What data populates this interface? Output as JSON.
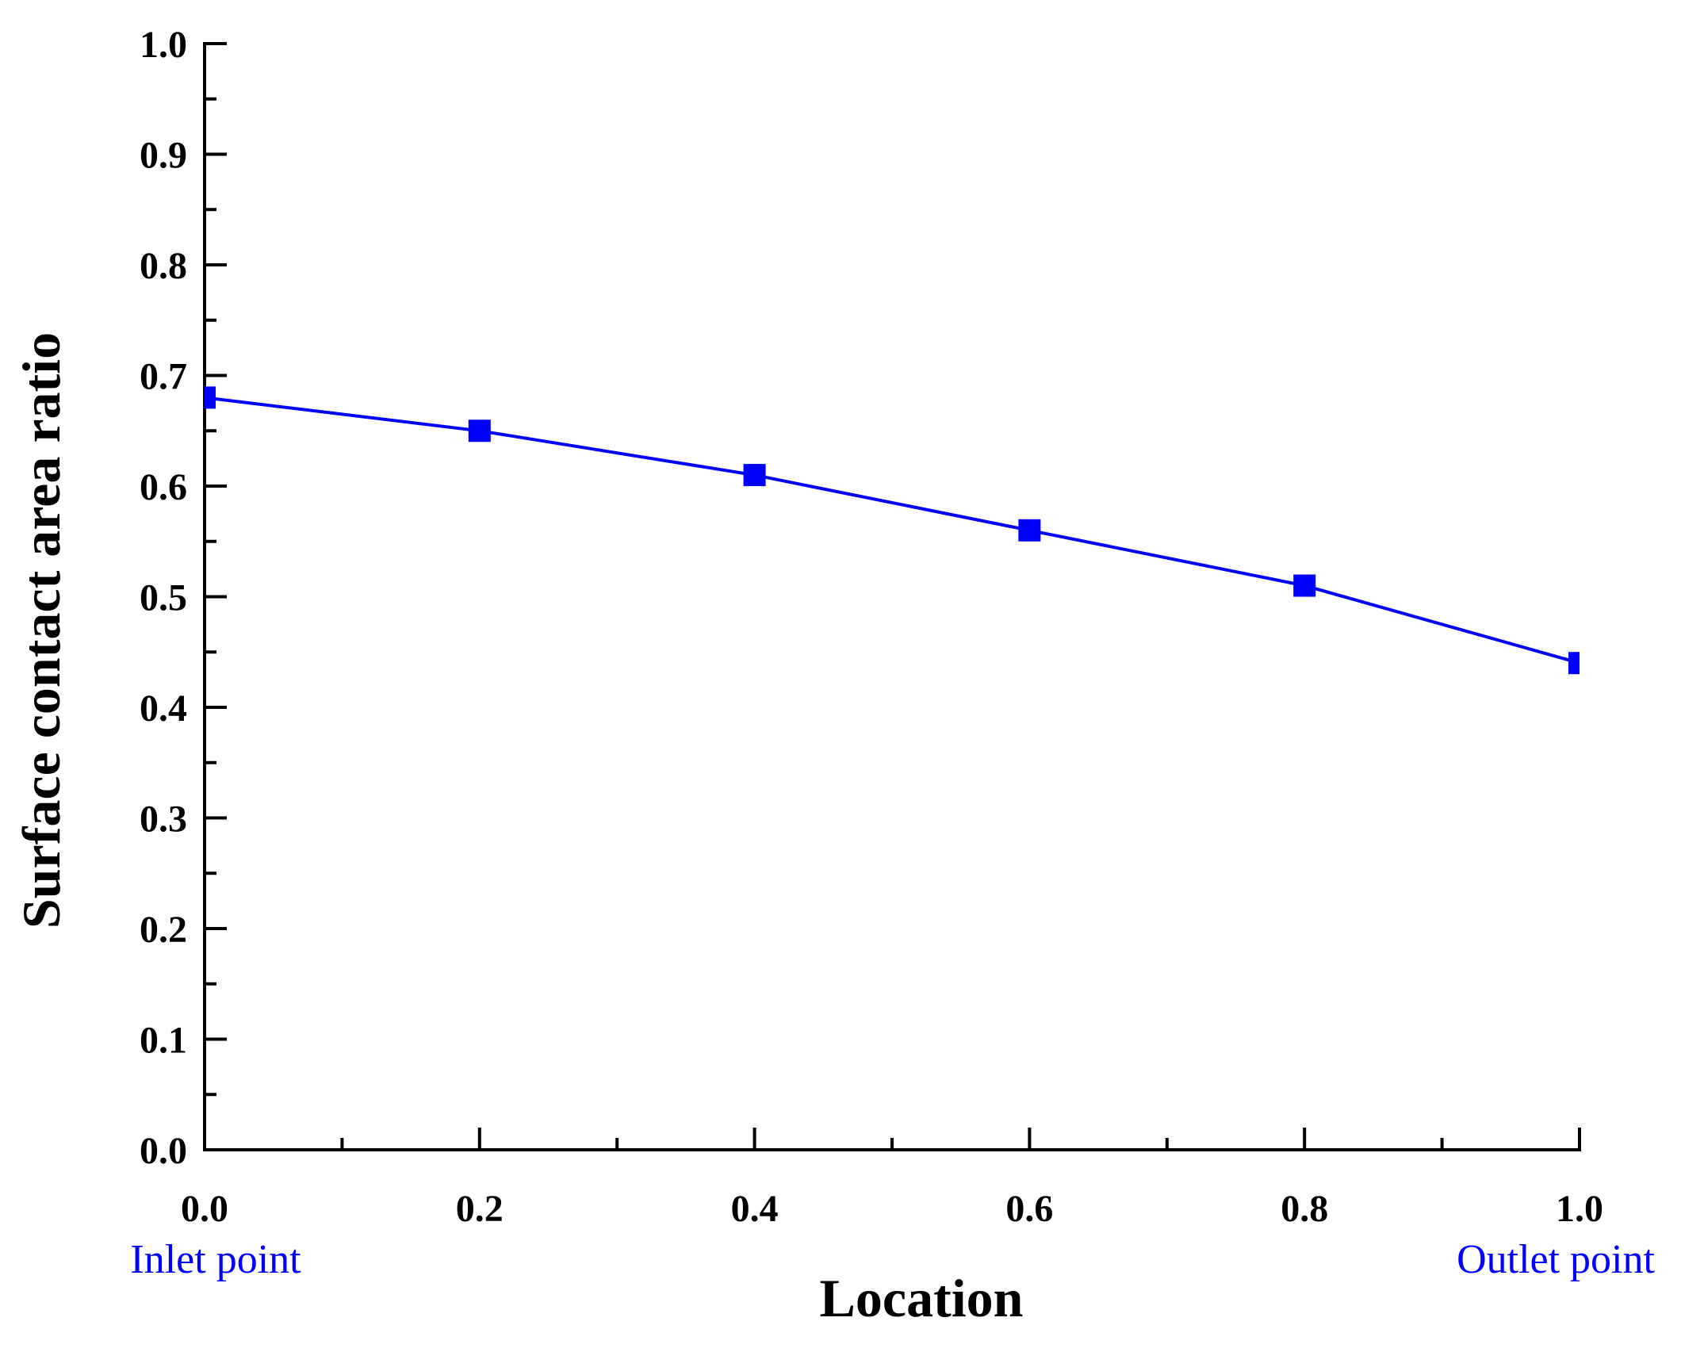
{
  "chart_data": {
    "type": "line",
    "title": "",
    "xlabel": "Location",
    "ylabel": "Surface contact area ratio",
    "xlim": [
      0.0,
      1.0
    ],
    "ylim": [
      0.0,
      1.0
    ],
    "x_ticks": [
      "0.0",
      "0.2",
      "0.4",
      "0.6",
      "0.8",
      "1.0"
    ],
    "y_ticks": [
      "0.0",
      "0.1",
      "0.2",
      "0.3",
      "0.4",
      "0.5",
      "0.6",
      "0.7",
      "0.8",
      "0.9",
      "1.0"
    ],
    "grid": false,
    "legend": "none",
    "series": [
      {
        "color": "#0000ff",
        "marker": "square",
        "x": [
          0.0,
          0.2,
          0.4,
          0.6,
          0.8,
          1.0
        ],
        "y": [
          0.68,
          0.65,
          0.61,
          0.56,
          0.51,
          0.44
        ]
      }
    ],
    "annotations": {
      "inlet": "Inlet point",
      "outlet": "Outlet point"
    }
  }
}
